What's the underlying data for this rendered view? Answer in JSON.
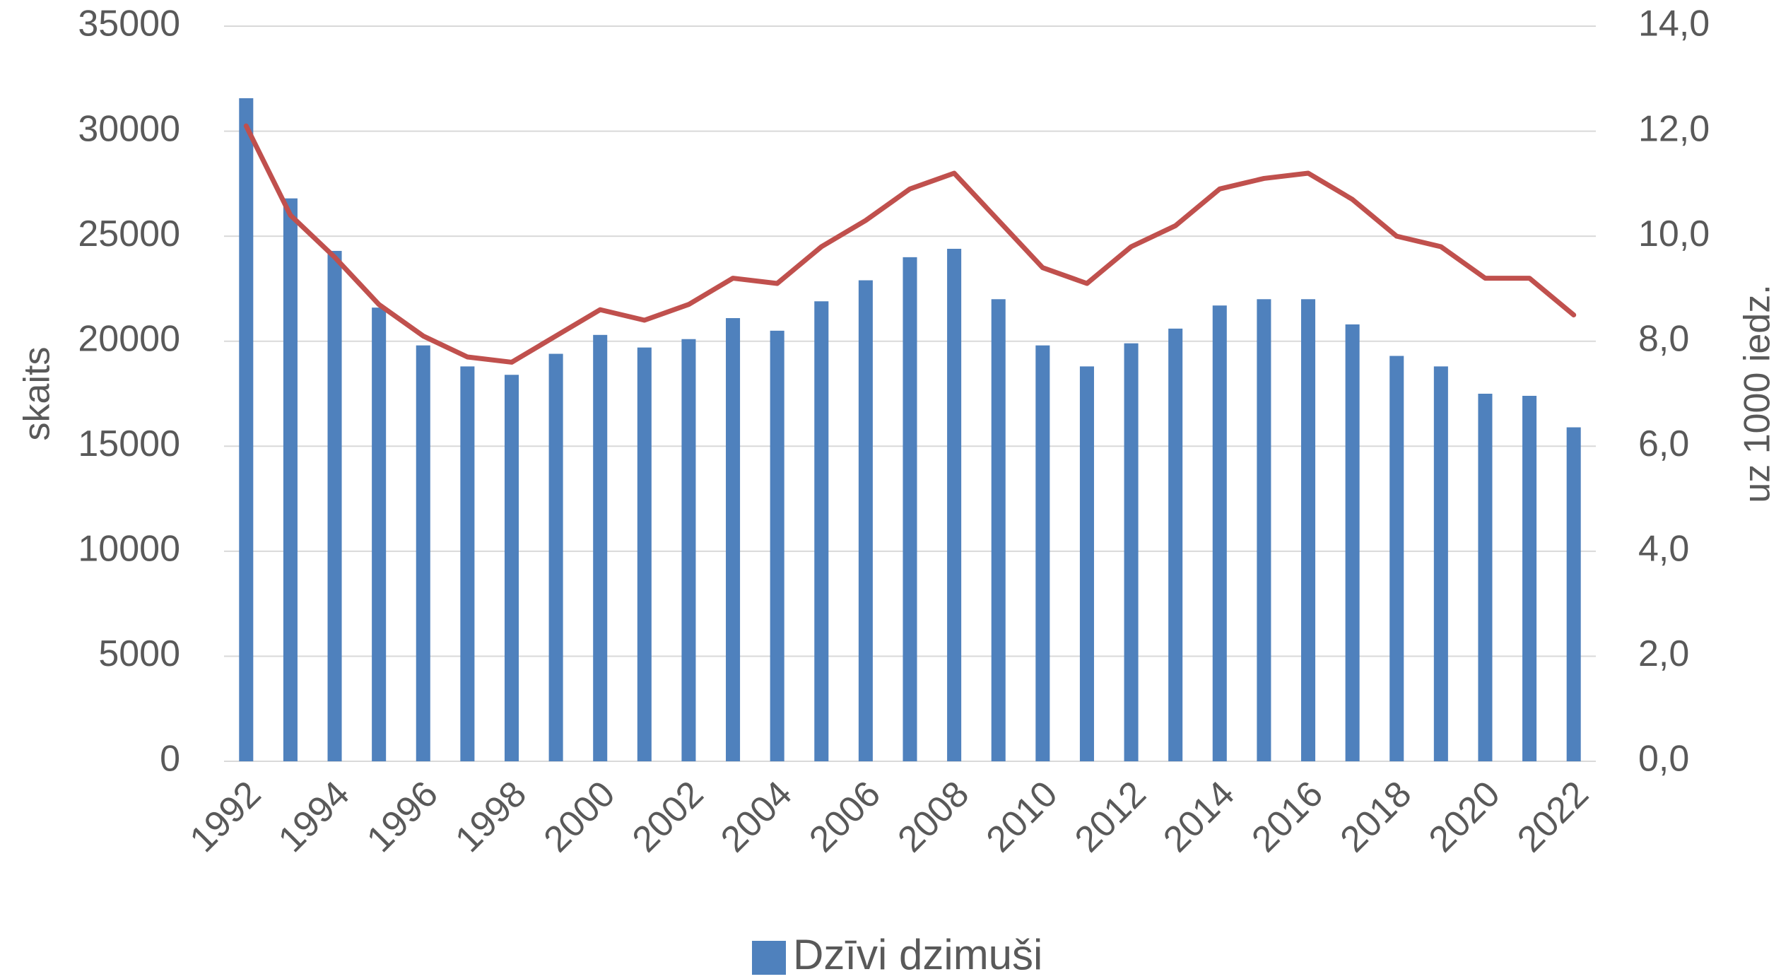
{
  "chart_data": {
    "type": "bar",
    "categories": [
      "1992",
      null,
      "1994",
      null,
      "1996",
      null,
      "1998",
      null,
      "2000",
      null,
      "2002",
      null,
      "2004",
      null,
      "2006",
      null,
      "2008",
      null,
      "2010",
      null,
      "2012",
      null,
      "2014",
      null,
      "2016",
      null,
      "2018",
      null,
      "2020",
      null,
      "2022"
    ],
    "series": [
      {
        "name": "Dzīvi dzimuši",
        "type": "bar",
        "color": "#4f81bd",
        "values": [
          31570,
          26800,
          24300,
          21600,
          19800,
          18800,
          18400,
          19400,
          20300,
          19700,
          20100,
          21100,
          20500,
          21900,
          22900,
          24000,
          24400,
          22000,
          19800,
          18800,
          19900,
          20600,
          21700,
          22000,
          22000,
          20800,
          19300,
          18800,
          17500,
          17400,
          15900
        ]
      },
      {
        "type": "line",
        "axis": "y2",
        "color": "#c0504d",
        "values": [
          12.1,
          10.4,
          9.6,
          8.7,
          8.1,
          7.7,
          7.6,
          8.1,
          8.6,
          8.4,
          8.7,
          9.2,
          9.1,
          9.8,
          10.3,
          10.9,
          11.2,
          10.3,
          9.4,
          9.1,
          9.8,
          10.2,
          10.9,
          11.1,
          11.2,
          10.7,
          10.0,
          9.8,
          9.2,
          9.2,
          8.5
        ]
      }
    ],
    "y_label": "skaits",
    "y2_label": "uz 1000 iedz.",
    "ylim": [
      0,
      35000
    ],
    "yticks": [
      0,
      5000,
      10000,
      15000,
      20000,
      25000,
      30000,
      35000
    ],
    "y2lim": [
      0,
      14
    ],
    "y2ticks": [
      {
        "value": 0,
        "label": "0,0"
      },
      {
        "value": 2,
        "label": "2,0"
      },
      {
        "value": 4,
        "label": "4,0"
      },
      {
        "value": 6,
        "label": "6,0"
      },
      {
        "value": 8,
        "label": "8,0"
      },
      {
        "value": 10,
        "label": "10,0"
      },
      {
        "value": 12,
        "label": "12,0"
      },
      {
        "value": 14,
        "label": "14,0"
      }
    ],
    "grid": true,
    "legend": "bottom"
  }
}
